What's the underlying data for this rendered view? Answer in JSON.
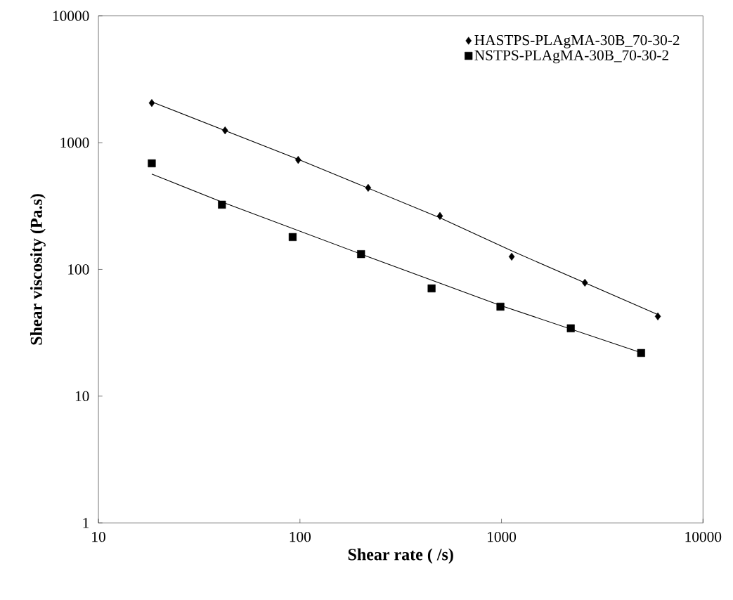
{
  "chart_data": {
    "type": "scatter",
    "xlabel": "Shear rate ( /s)",
    "ylabel": "Shear viscosity (Pa.s)",
    "log": "xy",
    "grid": false,
    "legend": "top right",
    "xlim": [
      10,
      10000
    ],
    "ylim": [
      1,
      10000
    ],
    "xticks": [
      10,
      100,
      1000,
      10000
    ],
    "yticks": [
      1,
      10,
      100,
      1000,
      10000
    ],
    "series": [
      {
        "name": "HASTPS-PLAgMA-30B_70-30-2",
        "marker": "diamond",
        "color": "#000000",
        "x": [
          18.4,
          42.5,
          98,
          218,
          495,
          1124,
          2594,
          5970
        ],
        "values": [
          2055,
          1250,
          731,
          440,
          264,
          126,
          78.5,
          42.6
        ]
      },
      {
        "name": "NSTPS-PLAgMA-30B_70-30-2",
        "marker": "square",
        "color": "#000000",
        "x": [
          18.4,
          41,
          92,
          201,
          450,
          988,
          2208,
          4932
        ],
        "values": [
          687,
          324,
          180,
          132,
          70.8,
          50.8,
          34.3,
          21.9
        ]
      },
      {
        "type": "line",
        "marker": "none",
        "line_style": "solid",
        "color": "#000000",
        "x": [
          18.4,
          98,
          495,
          1124,
          5970
        ],
        "values": [
          2100,
          740,
          255,
          140,
          44
        ]
      },
      {
        "type": "line",
        "marker": "none",
        "line_style": "solid",
        "color": "#000000",
        "x": [
          18.4,
          41,
          201,
          988,
          4932
        ],
        "values": [
          566,
          340,
          132,
          52,
          22
        ]
      }
    ]
  }
}
